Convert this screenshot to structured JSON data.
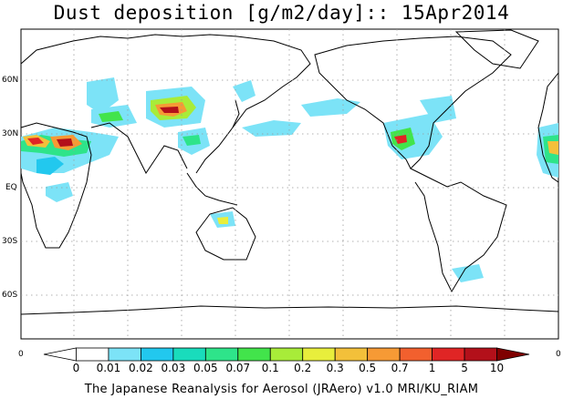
{
  "title": "Dust deposition [g/m2/day]:: 15Apr2014",
  "latitude_labels": [
    "60N",
    "30N",
    "EQ",
    "30S",
    "60S"
  ],
  "colorbar": {
    "left_end_label": "0",
    "right_end_label": "0",
    "levels": [
      "0",
      "0.01",
      "0.02",
      "0.03",
      "0.05",
      "0.07",
      "0.1",
      "0.2",
      "0.3",
      "0.5",
      "0.7",
      "1",
      "5",
      "10"
    ],
    "colors": [
      "#ffffff",
      "#ffffff",
      "#7ce3f7",
      "#22c8ee",
      "#19dcbc",
      "#2ee48a",
      "#42e44b",
      "#a8ec39",
      "#e8ee3c",
      "#f3c03a",
      "#f69a35",
      "#f2602e",
      "#e02525",
      "#b3101a",
      "#7f0000"
    ]
  },
  "credit": "The Japanese Reanalysis for Aerosol (JRAero) v1.0 MRI/KU_RIAM"
}
